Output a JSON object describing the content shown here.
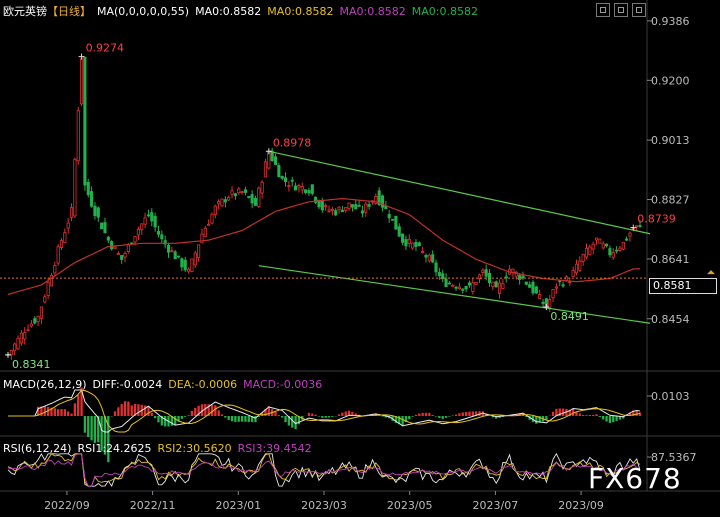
{
  "header": {
    "symbol": "欧元英镑",
    "period": "【日线】",
    "ma_def": "MA(0,0,0,0,0,55)",
    "ma_values": [
      "MA0:0.8582",
      "MA0:0.8582",
      "MA0:0.8582",
      "MA0:0.8582"
    ]
  },
  "macd": {
    "label": "MACD(26,12,9)",
    "diff": "DIFF:-0.0024",
    "dea": "DEA:-0.0006",
    "macd": "MACD:-0.0036",
    "axis_label": "0.0103"
  },
  "rsi": {
    "label": "RSI(6,12,24)",
    "rsi1": "RSI1:24.2625",
    "rsi2": "RSI2:30.5620",
    "rsi3": "RSI3:39.4542",
    "axis_label": "87.5367"
  },
  "watermark": "FX678",
  "current_price": "0.8581",
  "colors": {
    "up": "#e03030",
    "down": "#22b14c",
    "ma": "#c0302c",
    "channel": "#5cc84a",
    "price_line": "#e07020",
    "macd_diff": "#e8e8e8",
    "macd_dea": "#e8c21a",
    "rsi1": "#e8e8e8",
    "rsi2": "#e8c21a",
    "rsi3": "#c040c0"
  },
  "chart_data": {
    "type": "candlestick",
    "y_ticks": [
      0.9386,
      0.92,
      0.9013,
      0.8827,
      0.8641,
      0.8454
    ],
    "ylim": [
      0.8325,
      0.9395
    ],
    "x_ticks": [
      "2022/09",
      "2022/11",
      "2023/01",
      "2023/03",
      "2023/05",
      "2023/07",
      "2023/09"
    ],
    "annotations": [
      {
        "label": "0.9274",
        "value": 0.9274,
        "kind": "high"
      },
      {
        "label": "0.8341",
        "value": 0.8341,
        "kind": "low"
      },
      {
        "label": "0.8978",
        "value": 0.8978,
        "kind": "high"
      },
      {
        "label": "0.8739",
        "value": 0.8739,
        "kind": "high"
      },
      {
        "label": "0.8491",
        "value": 0.8491,
        "kind": "low"
      }
    ],
    "anchors": [
      [
        0,
        0.8341
      ],
      [
        5,
        0.842
      ],
      [
        9,
        0.846
      ],
      [
        13,
        0.86
      ],
      [
        16,
        0.87
      ],
      [
        19,
        0.879
      ],
      [
        22,
        0.9274
      ],
      [
        23,
        0.887
      ],
      [
        26,
        0.879
      ],
      [
        30,
        0.87
      ],
      [
        34,
        0.864
      ],
      [
        38,
        0.872
      ],
      [
        42,
        0.878
      ],
      [
        46,
        0.87
      ],
      [
        50,
        0.865
      ],
      [
        54,
        0.86
      ],
      [
        58,
        0.872
      ],
      [
        62,
        0.88
      ],
      [
        66,
        0.884
      ],
      [
        70,
        0.885
      ],
      [
        74,
        0.881
      ],
      [
        78,
        0.8978
      ],
      [
        82,
        0.889
      ],
      [
        86,
        0.887
      ],
      [
        90,
        0.886
      ],
      [
        94,
        0.88
      ],
      [
        98,
        0.879
      ],
      [
        102,
        0.881
      ],
      [
        106,
        0.879
      ],
      [
        110,
        0.884
      ],
      [
        114,
        0.878
      ],
      [
        118,
        0.87
      ],
      [
        122,
        0.868
      ],
      [
        126,
        0.864
      ],
      [
        130,
        0.857
      ],
      [
        134,
        0.856
      ],
      [
        138,
        0.855
      ],
      [
        142,
        0.86
      ],
      [
        146,
        0.854
      ],
      [
        150,
        0.861
      ],
      [
        154,
        0.858
      ],
      [
        158,
        0.853
      ],
      [
        161,
        0.8491
      ],
      [
        164,
        0.856
      ],
      [
        168,
        0.858
      ],
      [
        172,
        0.865
      ],
      [
        176,
        0.87
      ],
      [
        180,
        0.866
      ],
      [
        184,
        0.869
      ],
      [
        187,
        0.8739
      ]
    ],
    "ma_anchors": [
      [
        0,
        0.853
      ],
      [
        10,
        0.856
      ],
      [
        20,
        0.863
      ],
      [
        30,
        0.868
      ],
      [
        40,
        0.869
      ],
      [
        50,
        0.869
      ],
      [
        60,
        0.87
      ],
      [
        70,
        0.873
      ],
      [
        80,
        0.879
      ],
      [
        90,
        0.882
      ],
      [
        100,
        0.883
      ],
      [
        110,
        0.882
      ],
      [
        120,
        0.878
      ],
      [
        130,
        0.87
      ],
      [
        140,
        0.864
      ],
      [
        150,
        0.86
      ],
      [
        160,
        0.858
      ],
      [
        170,
        0.857
      ],
      [
        180,
        0.858
      ],
      [
        187,
        0.861
      ]
    ],
    "channel_upper": [
      [
        78,
        0.8978
      ],
      [
        192,
        0.872
      ]
    ],
    "channel_lower": [
      [
        75,
        0.862
      ],
      [
        192,
        0.844
      ]
    ],
    "current_price": 0.8581
  }
}
